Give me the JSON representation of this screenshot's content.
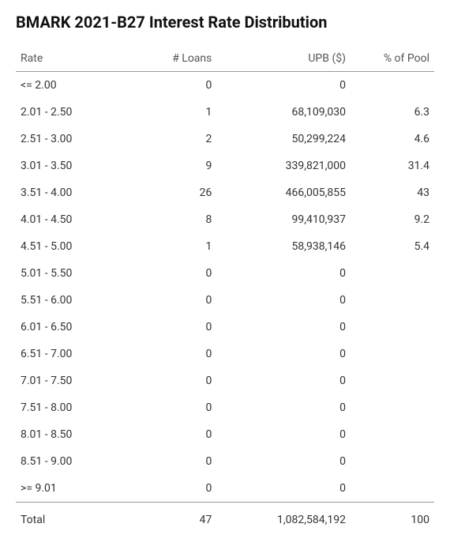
{
  "title": "BMARK 2021-B27 Interest Rate Distribution",
  "columns": {
    "rate": "Rate",
    "loans": "# Loans",
    "upb": "UPB ($)",
    "pct": "% of Pool"
  },
  "rows": [
    {
      "rate": "<= 2.00",
      "loans": "0",
      "upb": "0",
      "pct": ""
    },
    {
      "rate": "2.01 - 2.50",
      "loans": "1",
      "upb": "68,109,030",
      "pct": "6.3"
    },
    {
      "rate": "2.51 - 3.00",
      "loans": "2",
      "upb": "50,299,224",
      "pct": "4.6"
    },
    {
      "rate": "3.01 - 3.50",
      "loans": "9",
      "upb": "339,821,000",
      "pct": "31.4"
    },
    {
      "rate": "3.51 - 4.00",
      "loans": "26",
      "upb": "466,005,855",
      "pct": "43"
    },
    {
      "rate": "4.01 - 4.50",
      "loans": "8",
      "upb": "99,410,937",
      "pct": "9.2"
    },
    {
      "rate": "4.51 - 5.00",
      "loans": "1",
      "upb": "58,938,146",
      "pct": "5.4"
    },
    {
      "rate": "5.01 - 5.50",
      "loans": "0",
      "upb": "0",
      "pct": ""
    },
    {
      "rate": "5.51 - 6.00",
      "loans": "0",
      "upb": "0",
      "pct": ""
    },
    {
      "rate": "6.01 - 6.50",
      "loans": "0",
      "upb": "0",
      "pct": ""
    },
    {
      "rate": "6.51 - 7.00",
      "loans": "0",
      "upb": "0",
      "pct": ""
    },
    {
      "rate": "7.01 - 7.50",
      "loans": "0",
      "upb": "0",
      "pct": ""
    },
    {
      "rate": "7.51 - 8.00",
      "loans": "0",
      "upb": "0",
      "pct": ""
    },
    {
      "rate": "8.01 - 8.50",
      "loans": "0",
      "upb": "0",
      "pct": ""
    },
    {
      "rate": "8.51 - 9.00",
      "loans": "0",
      "upb": "0",
      "pct": ""
    },
    {
      "rate": ">= 9.01",
      "loans": "0",
      "upb": "0",
      "pct": ""
    }
  ],
  "total": {
    "label": "Total",
    "loans": "47",
    "upb": "1,082,584,192",
    "pct": "100"
  },
  "colors": {
    "text": "#333333",
    "header_text": "#555555",
    "title_text": "#111111",
    "border": "#999999",
    "background": "#ffffff"
  },
  "table_type": "table"
}
